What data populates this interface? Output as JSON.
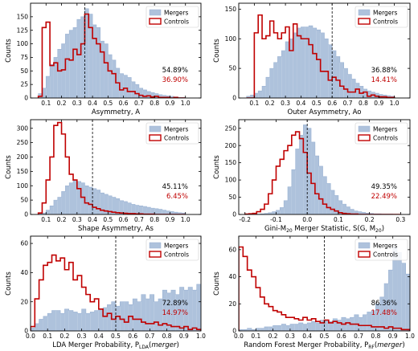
{
  "colors": {
    "mergers_fill": "#aec2dc",
    "mergers_edge": "#9bb3d3",
    "controls": "#c00000",
    "axis": "#000000"
  },
  "legend": {
    "mergers": "Mergers",
    "controls": "Controls"
  },
  "chart_data": [
    {
      "type": "histogram",
      "ylabel": "Counts",
      "xlabel": "Asymmetry, A",
      "xlim": [
        0,
        1.1
      ],
      "ylim": [
        0,
        175
      ],
      "xticks": [
        "0.1",
        "0.2",
        "0.3",
        "0.4",
        "0.5",
        "0.6",
        "0.7",
        "0.8",
        "0.9",
        "1.0"
      ],
      "xtick_values": [
        0.1,
        0.2,
        0.3,
        0.4,
        0.5,
        0.6,
        0.7,
        0.8,
        0.9,
        1.0
      ],
      "yticks": [
        "0",
        "25",
        "50",
        "75",
        "100",
        "125",
        "150"
      ],
      "ytick_values": [
        0,
        25,
        50,
        75,
        100,
        125,
        150
      ],
      "vline": 0.35,
      "mergers_pct": "54.89%",
      "controls_pct": "36.90%",
      "bin_edges": [
        0.05,
        0.075,
        0.1,
        0.125,
        0.15,
        0.175,
        0.2,
        0.225,
        0.25,
        0.275,
        0.3,
        0.325,
        0.35,
        0.375,
        0.4,
        0.425,
        0.45,
        0.475,
        0.5,
        0.525,
        0.55,
        0.575,
        0.6,
        0.625,
        0.65,
        0.675,
        0.7,
        0.725,
        0.75,
        0.775,
        0.8,
        0.825,
        0.85,
        0.875,
        0.9,
        0.925,
        0.95,
        0.975,
        1.0
      ],
      "mergers": [
        8,
        18,
        40,
        62,
        75,
        90,
        100,
        118,
        125,
        130,
        145,
        150,
        165,
        155,
        135,
        130,
        105,
        100,
        80,
        70,
        55,
        45,
        42,
        38,
        30,
        25,
        18,
        15,
        12,
        10,
        8,
        6,
        5,
        4,
        3,
        2,
        1,
        1
      ],
      "controls": [
        3,
        130,
        140,
        60,
        65,
        50,
        52,
        72,
        70,
        90,
        80,
        100,
        155,
        130,
        110,
        100,
        85,
        65,
        50,
        45,
        28,
        15,
        18,
        12,
        12,
        8,
        5,
        3,
        4,
        2,
        3,
        1,
        1,
        1,
        0,
        1,
        0,
        0
      ]
    },
    {
      "type": "histogram",
      "ylabel": "Counts",
      "xlabel": "Outer Asymmetry, Ao",
      "xlim": [
        0,
        1.1
      ],
      "ylim": [
        0,
        160
      ],
      "xticks": [
        "0.1",
        "0.2",
        "0.3",
        "0.4",
        "0.5",
        "0.6",
        "0.7",
        "0.8",
        "0.9",
        "1.0"
      ],
      "xtick_values": [
        0.1,
        0.2,
        0.3,
        0.4,
        0.5,
        0.6,
        0.7,
        0.8,
        0.9,
        1.0
      ],
      "yticks": [
        "0",
        "50",
        "100",
        "150"
      ],
      "ytick_values": [
        0,
        50,
        100,
        150
      ],
      "vline": 0.6,
      "mergers_pct": "36.88%",
      "controls_pct": "14.41%",
      "bin_edges": [
        0.05,
        0.075,
        0.1,
        0.125,
        0.15,
        0.175,
        0.2,
        0.225,
        0.25,
        0.275,
        0.3,
        0.325,
        0.35,
        0.375,
        0.4,
        0.425,
        0.45,
        0.475,
        0.5,
        0.525,
        0.55,
        0.575,
        0.6,
        0.625,
        0.65,
        0.675,
        0.7,
        0.725,
        0.75,
        0.775,
        0.8,
        0.825,
        0.85,
        0.875,
        0.9,
        0.925,
        0.95,
        0.975,
        1.0
      ],
      "mergers": [
        3,
        5,
        8,
        12,
        20,
        35,
        50,
        60,
        70,
        80,
        95,
        100,
        110,
        118,
        120,
        120,
        122,
        118,
        115,
        110,
        100,
        90,
        80,
        70,
        60,
        50,
        40,
        32,
        25,
        20,
        15,
        12,
        10,
        8,
        6,
        5,
        4,
        3
      ],
      "controls": [
        0,
        0,
        110,
        140,
        100,
        105,
        130,
        110,
        100,
        110,
        120,
        80,
        125,
        105,
        100,
        100,
        90,
        75,
        65,
        45,
        45,
        30,
        35,
        30,
        20,
        15,
        10,
        10,
        15,
        8,
        10,
        3,
        5,
        3,
        2,
        2,
        1,
        1
      ]
    },
    {
      "type": "histogram",
      "ylabel": "Counts",
      "xlabel": "Shape Asymmetry, As",
      "xlim": [
        0,
        1.1
      ],
      "ylim": [
        0,
        330
      ],
      "xticks": [
        "0.1",
        "0.2",
        "0.3",
        "0.4",
        "0.5",
        "0.6",
        "0.7",
        "0.8",
        "0.9",
        "1.0"
      ],
      "xtick_values": [
        0.1,
        0.2,
        0.3,
        0.4,
        0.5,
        0.6,
        0.7,
        0.8,
        0.9,
        1.0
      ],
      "yticks": [
        "0",
        "50",
        "100",
        "150",
        "200",
        "250",
        "300"
      ],
      "ytick_values": [
        0,
        50,
        100,
        150,
        200,
        250,
        300
      ],
      "vline": 0.4,
      "mergers_pct": "45.11%",
      "controls_pct": "6.45%",
      "bin_edges": [
        0.05,
        0.075,
        0.1,
        0.125,
        0.15,
        0.175,
        0.2,
        0.225,
        0.25,
        0.275,
        0.3,
        0.325,
        0.35,
        0.375,
        0.4,
        0.425,
        0.45,
        0.475,
        0.5,
        0.525,
        0.55,
        0.575,
        0.6,
        0.625,
        0.65,
        0.675,
        0.7,
        0.725,
        0.75,
        0.775,
        0.8,
        0.825,
        0.85,
        0.875,
        0.9,
        0.925,
        0.95,
        0.975,
        1.0
      ],
      "mergers": [
        2,
        5,
        15,
        30,
        50,
        60,
        80,
        100,
        110,
        120,
        115,
        110,
        100,
        95,
        90,
        85,
        75,
        70,
        65,
        60,
        55,
        48,
        45,
        40,
        35,
        32,
        30,
        28,
        25,
        22,
        20,
        18,
        15,
        12,
        10,
        8,
        6,
        5
      ],
      "controls": [
        5,
        40,
        120,
        200,
        310,
        320,
        280,
        200,
        140,
        120,
        90,
        60,
        40,
        35,
        25,
        20,
        15,
        12,
        10,
        8,
        6,
        5,
        4,
        3,
        3,
        2,
        2,
        1,
        1,
        1,
        0,
        0,
        0,
        0,
        0,
        0,
        0,
        0
      ]
    },
    {
      "type": "histogram",
      "ylabel": "Counts",
      "xlabel": "Gini-M20 Merger Statistic, S(G, M20)",
      "xlim": [
        -0.22,
        0.33
      ],
      "ylim": [
        0,
        275
      ],
      "xticks": [
        "-0.2",
        "-0.1",
        "0.0",
        "0.1",
        "0.2",
        "0.3"
      ],
      "xtick_values": [
        -0.2,
        -0.1,
        0.0,
        0.1,
        0.2,
        0.3
      ],
      "yticks": [
        "0",
        "50",
        "100",
        "150",
        "200",
        "250"
      ],
      "ytick_values": [
        0,
        50,
        100,
        150,
        200,
        250
      ],
      "vline": 0.0,
      "mergers_pct": "49.35%",
      "controls_pct": "22.49%",
      "bin_edges": [
        -0.2,
        -0.1875,
        -0.175,
        -0.1625,
        -0.15,
        -0.1375,
        -0.125,
        -0.1125,
        -0.1,
        -0.0875,
        -0.075,
        -0.0625,
        -0.05,
        -0.0375,
        -0.025,
        -0.0125,
        0.0,
        0.0125,
        0.025,
        0.0375,
        0.05,
        0.0625,
        0.075,
        0.0875,
        0.1,
        0.1125,
        0.125,
        0.1375,
        0.15,
        0.1625,
        0.175,
        0.1875,
        0.2,
        0.2125,
        0.225,
        0.2375,
        0.25,
        0.2625,
        0.275,
        0.2875,
        0.3
      ],
      "mergers": [
        0,
        0,
        0,
        1,
        2,
        3,
        5,
        8,
        12,
        20,
        40,
        80,
        130,
        190,
        230,
        260,
        250,
        210,
        170,
        140,
        110,
        90,
        70,
        55,
        40,
        30,
        22,
        15,
        10,
        8,
        6,
        4,
        3,
        2,
        2,
        1,
        1,
        1,
        0,
        0
      ],
      "controls": [
        1,
        2,
        3,
        8,
        15,
        30,
        60,
        100,
        140,
        160,
        185,
        200,
        230,
        240,
        220,
        180,
        120,
        90,
        60,
        45,
        30,
        20,
        15,
        10,
        5,
        3,
        2,
        1,
        1,
        0,
        0,
        0,
        0,
        0,
        0,
        0,
        0,
        0,
        0,
        0
      ]
    },
    {
      "type": "histogram",
      "ylabel": "Counts",
      "xlabel": "LDA Merger Probability, P_LDA(merger)",
      "xlim": [
        0,
        1.0
      ],
      "ylim": [
        0,
        65
      ],
      "xticks": [
        "0.0",
        "0.1",
        "0.2",
        "0.3",
        "0.4",
        "0.5",
        "0.6",
        "0.7",
        "0.8",
        "0.9",
        "1.0"
      ],
      "xtick_values": [
        0.0,
        0.1,
        0.2,
        0.3,
        0.4,
        0.5,
        0.6,
        0.7,
        0.8,
        0.9,
        1.0
      ],
      "yticks": [
        "0",
        "20",
        "40",
        "60"
      ],
      "ytick_values": [
        0,
        20,
        40,
        60
      ],
      "vline": 0.5,
      "mergers_pct": "72.89%",
      "controls_pct": "14.97%",
      "bin_edges": [
        0.0,
        0.025,
        0.05,
        0.075,
        0.1,
        0.125,
        0.15,
        0.175,
        0.2,
        0.225,
        0.25,
        0.275,
        0.3,
        0.325,
        0.35,
        0.375,
        0.4,
        0.425,
        0.45,
        0.475,
        0.5,
        0.525,
        0.55,
        0.575,
        0.6,
        0.625,
        0.65,
        0.675,
        0.7,
        0.725,
        0.75,
        0.775,
        0.8,
        0.825,
        0.85,
        0.875,
        0.9,
        0.925,
        0.95,
        0.975,
        1.0
      ],
      "mergers": [
        2,
        5,
        8,
        10,
        12,
        14,
        14,
        12,
        15,
        14,
        13,
        12,
        15,
        12,
        13,
        14,
        15,
        16,
        18,
        20,
        17,
        20,
        20,
        18,
        22,
        20,
        25,
        22,
        25,
        20,
        22,
        28,
        26,
        28,
        25,
        30,
        28,
        30,
        28,
        32
      ],
      "controls": [
        3,
        22,
        35,
        45,
        47,
        52,
        48,
        50,
        42,
        47,
        35,
        38,
        30,
        25,
        20,
        22,
        15,
        10,
        12,
        8,
        10,
        8,
        6,
        10,
        8,
        8,
        6,
        5,
        5,
        6,
        4,
        5,
        4,
        3,
        3,
        2,
        3,
        1,
        2,
        1
      ]
    },
    {
      "type": "histogram",
      "ylabel": "Counts",
      "xlabel": "Random Forest Merger Probability, P_RF(merger)",
      "xlim": [
        0,
        1.0
      ],
      "ylim": [
        0,
        70
      ],
      "xticks": [
        "0.0",
        "0.1",
        "0.2",
        "0.3",
        "0.4",
        "0.5",
        "0.6",
        "0.7",
        "0.8",
        "0.9",
        "1.0"
      ],
      "xtick_values": [
        0.0,
        0.1,
        0.2,
        0.3,
        0.4,
        0.5,
        0.6,
        0.7,
        0.8,
        0.9,
        1.0
      ],
      "yticks": [
        "0",
        "20",
        "40",
        "60"
      ],
      "ytick_values": [
        0,
        20,
        40,
        60
      ],
      "vline": 0.5,
      "mergers_pct": "86.36%",
      "controls_pct": "17.48%",
      "bin_edges": [
        0.0,
        0.025,
        0.05,
        0.075,
        0.1,
        0.125,
        0.15,
        0.175,
        0.2,
        0.225,
        0.25,
        0.275,
        0.3,
        0.325,
        0.35,
        0.375,
        0.4,
        0.425,
        0.45,
        0.475,
        0.5,
        0.525,
        0.55,
        0.575,
        0.6,
        0.625,
        0.65,
        0.675,
        0.7,
        0.725,
        0.75,
        0.775,
        0.8,
        0.825,
        0.85,
        0.875,
        0.9,
        0.925,
        0.95,
        0.975,
        1.0
      ],
      "mergers": [
        1,
        1,
        2,
        1,
        2,
        2,
        3,
        3,
        4,
        4,
        5,
        4,
        5,
        5,
        6,
        5,
        6,
        7,
        6,
        8,
        8,
        7,
        9,
        8,
        10,
        9,
        10,
        12,
        10,
        12,
        14,
        15,
        20,
        25,
        35,
        45,
        62,
        58,
        50,
        42
      ],
      "controls": [
        62,
        55,
        45,
        40,
        32,
        25,
        20,
        18,
        15,
        14,
        12,
        10,
        10,
        9,
        8,
        10,
        8,
        9,
        7,
        6,
        8,
        6,
        7,
        6,
        5,
        6,
        5,
        5,
        4,
        4,
        4,
        3,
        3,
        3,
        2,
        3,
        2,
        2,
        1,
        1
      ]
    }
  ]
}
